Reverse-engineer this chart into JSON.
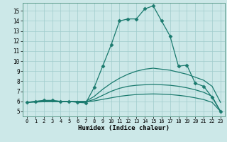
{
  "title": "",
  "xlabel": "Humidex (Indice chaleur)",
  "xlim": [
    -0.5,
    23.5
  ],
  "ylim": [
    4.5,
    15.8
  ],
  "yticks": [
    5,
    6,
    7,
    8,
    9,
    10,
    11,
    12,
    13,
    14,
    15
  ],
  "xticks": [
    0,
    1,
    2,
    3,
    4,
    5,
    6,
    7,
    8,
    9,
    10,
    11,
    12,
    13,
    14,
    15,
    16,
    17,
    18,
    19,
    20,
    21,
    22,
    23
  ],
  "bg_color": "#cce8e8",
  "line_color": "#1a7a6e",
  "series": [
    {
      "x": [
        0,
        1,
        2,
        3,
        4,
        5,
        6,
        7,
        8,
        9,
        10,
        11,
        12,
        13,
        14,
        15,
        16,
        17,
        18,
        19,
        20,
        21,
        22,
        23
      ],
      "y": [
        5.9,
        6.0,
        6.1,
        6.1,
        6.0,
        6.0,
        5.9,
        5.85,
        7.4,
        9.5,
        11.6,
        14.0,
        14.2,
        14.2,
        15.2,
        15.5,
        14.0,
        12.5,
        9.5,
        9.6,
        7.8,
        7.5,
        6.4,
        5.0
      ],
      "marker": "D",
      "markersize": 2.5
    },
    {
      "x": [
        0,
        1,
        2,
        3,
        4,
        5,
        6,
        7,
        8,
        9,
        10,
        11,
        12,
        13,
        14,
        15,
        16,
        17,
        18,
        19,
        20,
        21,
        22,
        23
      ],
      "y": [
        5.9,
        6.0,
        6.05,
        6.05,
        6.0,
        6.0,
        6.0,
        6.0,
        6.5,
        7.2,
        7.8,
        8.3,
        8.7,
        9.0,
        9.2,
        9.3,
        9.2,
        9.1,
        8.9,
        8.7,
        8.4,
        8.1,
        7.5,
        5.9
      ],
      "marker": null,
      "markersize": 0
    },
    {
      "x": [
        0,
        1,
        2,
        3,
        4,
        5,
        6,
        7,
        8,
        9,
        10,
        11,
        12,
        13,
        14,
        15,
        16,
        17,
        18,
        19,
        20,
        21,
        22,
        23
      ],
      "y": [
        5.9,
        5.95,
        6.0,
        6.0,
        5.98,
        5.98,
        5.96,
        5.95,
        6.2,
        6.6,
        7.0,
        7.3,
        7.5,
        7.6,
        7.65,
        7.7,
        7.65,
        7.6,
        7.5,
        7.35,
        7.15,
        6.9,
        6.5,
        5.0
      ],
      "marker": null,
      "markersize": 0
    },
    {
      "x": [
        0,
        1,
        2,
        3,
        4,
        5,
        6,
        7,
        8,
        9,
        10,
        11,
        12,
        13,
        14,
        15,
        16,
        17,
        18,
        19,
        20,
        21,
        22,
        23
      ],
      "y": [
        5.9,
        5.93,
        5.96,
        5.97,
        5.97,
        5.97,
        5.96,
        5.95,
        6.05,
        6.2,
        6.35,
        6.5,
        6.6,
        6.68,
        6.72,
        6.74,
        6.72,
        6.68,
        6.6,
        6.5,
        6.35,
        6.18,
        5.9,
        5.0
      ],
      "marker": null,
      "markersize": 0
    }
  ]
}
